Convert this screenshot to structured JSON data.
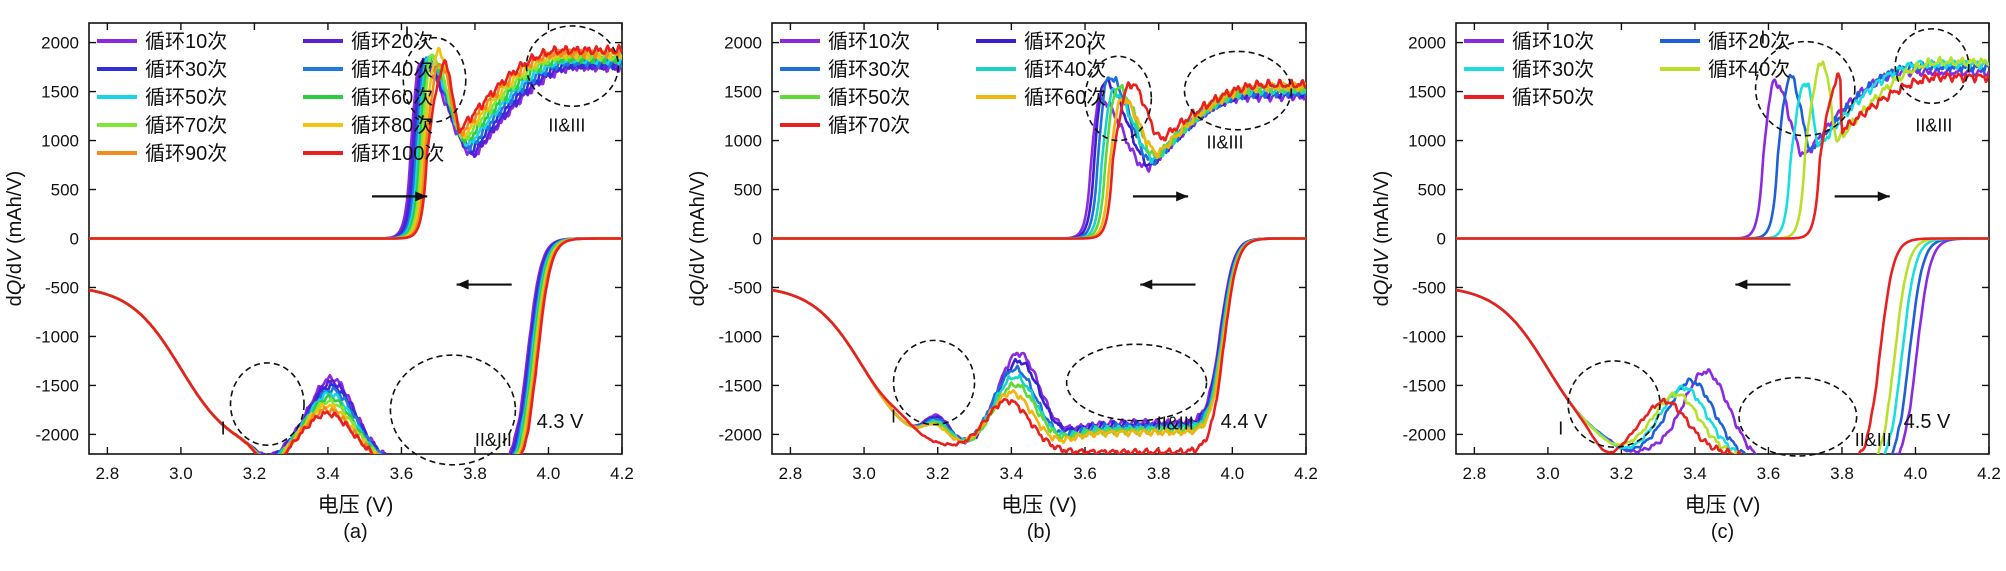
{
  "chart_data": [
    {
      "type": "line",
      "panel_label": "(a)",
      "voltage_label": "4.3 V",
      "xlabel": "电压 (V)",
      "ylabel_parts": [
        "d",
        "Q",
        "/d",
        "V",
        " (mAh/V)"
      ],
      "xlim": [
        2.75,
        4.2
      ],
      "ylim": [
        -2200,
        2200
      ],
      "xticks": [
        "2.8",
        "3.0",
        "3.2",
        "3.4",
        "3.6",
        "3.8",
        "4.0",
        "4.2"
      ],
      "yticks": [
        "-2000",
        "-1500",
        "-1000",
        "-500",
        "0",
        "500",
        "1000",
        "1500",
        "2000"
      ],
      "legend_columns": 2,
      "series": [
        {
          "name": "循环10次",
          "color": "#8a2be2",
          "charge_onset": 3.625,
          "charge_peak": [
            3.652,
            1800
          ],
          "charge_valley": [
            3.8,
            850
          ],
          "charge_end": 1750,
          "dis_peak": [
            3.235,
            -1800
          ],
          "dis_hump": [
            3.41,
            -950
          ],
          "dis_plateau": -1850,
          "dis_edge": 3.945
        },
        {
          "name": "循环20次",
          "color": "#5a1fd6",
          "charge_onset": 3.63,
          "charge_peak": [
            3.657,
            1810
          ],
          "charge_valley": [
            3.8,
            870
          ],
          "charge_end": 1760,
          "dis_peak": [
            3.236,
            -1810
          ],
          "dis_hump": [
            3.41,
            -990
          ],
          "dis_plateau": -1860,
          "dis_edge": 3.948
        },
        {
          "name": "循环30次",
          "color": "#2f2fd8",
          "charge_onset": 3.635,
          "charge_peak": [
            3.662,
            1820
          ],
          "charge_valley": [
            3.795,
            900
          ],
          "charge_end": 1780,
          "dis_peak": [
            3.237,
            -1820
          ],
          "dis_hump": [
            3.41,
            -1030
          ],
          "dis_plateau": -1870,
          "dis_edge": 3.951
        },
        {
          "name": "循环40次",
          "color": "#1f7ad8",
          "charge_onset": 3.64,
          "charge_peak": [
            3.667,
            1830
          ],
          "charge_valley": [
            3.79,
            930
          ],
          "charge_end": 1800,
          "dis_peak": [
            3.238,
            -1830
          ],
          "dis_hump": [
            3.41,
            -1070
          ],
          "dis_plateau": -1880,
          "dis_edge": 3.954
        },
        {
          "name": "循环50次",
          "color": "#19d3e8",
          "charge_onset": 3.645,
          "charge_peak": [
            3.672,
            1840
          ],
          "charge_valley": [
            3.785,
            960
          ],
          "charge_end": 1820,
          "dis_peak": [
            3.239,
            -1840
          ],
          "dis_hump": [
            3.405,
            -1110
          ],
          "dis_plateau": -1890,
          "dis_edge": 3.957
        },
        {
          "name": "循环60次",
          "color": "#2ecc40",
          "charge_onset": 3.65,
          "charge_peak": [
            3.677,
            1850
          ],
          "charge_valley": [
            3.78,
            990
          ],
          "charge_end": 1840,
          "dis_peak": [
            3.24,
            -1850
          ],
          "dis_hump": [
            3.405,
            -1150
          ],
          "dis_plateau": -1900,
          "dis_edge": 3.96
        },
        {
          "name": "循环70次",
          "color": "#7ee83a",
          "charge_onset": 3.655,
          "charge_peak": [
            3.682,
            1860
          ],
          "charge_valley": [
            3.775,
            1020
          ],
          "charge_end": 1860,
          "dis_peak": [
            3.241,
            -1860
          ],
          "dis_hump": [
            3.405,
            -1190
          ],
          "dis_plateau": -1910,
          "dis_edge": 3.963
        },
        {
          "name": "循环80次",
          "color": "#f2c40f",
          "charge_onset": 3.66,
          "charge_peak": [
            3.7,
            1900
          ],
          "charge_valley": [
            3.77,
            1050
          ],
          "charge_end": 1880,
          "dis_peak": [
            3.242,
            -1870
          ],
          "dis_hump": [
            3.4,
            -1230
          ],
          "dis_plateau": -1920,
          "dis_edge": 3.966
        },
        {
          "name": "循环90次",
          "color": "#f28c1f",
          "charge_onset": 3.665,
          "charge_peak": [
            3.705,
            1790
          ],
          "charge_valley": [
            3.765,
            1080
          ],
          "charge_end": 1900,
          "dis_peak": [
            3.243,
            -1880
          ],
          "dis_hump": [
            3.4,
            -1270
          ],
          "dis_plateau": -1930,
          "dis_edge": 3.969
        },
        {
          "name": "循环100次",
          "color": "#e8201f",
          "charge_onset": 3.67,
          "charge_peak": [
            3.72,
            1780
          ],
          "charge_valley": [
            3.76,
            1110
          ],
          "charge_end": 1920,
          "dis_peak": [
            3.244,
            -1890
          ],
          "dis_hump": [
            3.4,
            -1310
          ],
          "dis_plateau": -1940,
          "dis_edge": 3.972
        }
      ],
      "annotations": [
        {
          "text": "I",
          "x": 3.615,
          "y": 2030
        },
        {
          "text": "II&III",
          "x": 4.05,
          "y": 1090
        },
        {
          "text": "I",
          "x": 3.115,
          "y": -2000
        },
        {
          "text": "II&III",
          "x": 3.85,
          "y": -2120
        }
      ],
      "circles": [
        {
          "cx": 3.69,
          "cy": 1620,
          "rx": 0.085,
          "ry": 430
        },
        {
          "cx": 4.065,
          "cy": 1760,
          "rx": 0.125,
          "ry": 410
        },
        {
          "cx": 3.235,
          "cy": -1690,
          "rx": 0.1,
          "ry": 420
        },
        {
          "cx": 3.74,
          "cy": -1750,
          "rx": 0.17,
          "ry": 560
        }
      ],
      "arrows": [
        {
          "direction": "right",
          "x1": 3.52,
          "x2": 3.67,
          "y": 430
        },
        {
          "direction": "left",
          "x1": 3.9,
          "x2": 3.75,
          "y": -470
        }
      ]
    },
    {
      "type": "line",
      "panel_label": "(b)",
      "voltage_label": "4.4 V",
      "xlabel": "电压 (V)",
      "ylabel_parts": [
        "d",
        "Q",
        "/d",
        "V",
        " (mAh/V)"
      ],
      "xlim": [
        2.75,
        4.2
      ],
      "ylim": [
        -2200,
        2200
      ],
      "xticks": [
        "2.8",
        "3.0",
        "3.2",
        "3.4",
        "3.6",
        "3.8",
        "4.0",
        "4.2"
      ],
      "yticks": [
        "-2000",
        "-1500",
        "-1000",
        "-500",
        "0",
        "500",
        "1000",
        "1500",
        "2000"
      ],
      "legend_columns": 2,
      "series": [
        {
          "name": "循环10次",
          "color": "#8a2be2",
          "charge_onset": 3.615,
          "charge_peak": [
            3.64,
            1420
          ],
          "charge_valley": [
            3.77,
            720
          ],
          "charge_end": 1450,
          "dis_peak": [
            3.2,
            -1420
          ],
          "dis_hump": [
            3.42,
            -700
          ],
          "dis_plateau": -1400,
          "dis_edge": 3.965
        },
        {
          "name": "循环20次",
          "color": "#3a1fd0",
          "charge_onset": 3.625,
          "charge_peak": [
            3.652,
            1600
          ],
          "charge_valley": [
            3.78,
            750
          ],
          "charge_end": 1470,
          "dis_peak": [
            3.2,
            -1440
          ],
          "dis_hump": [
            3.42,
            -780
          ],
          "dis_plateau": -1420,
          "dis_edge": 3.967
        },
        {
          "name": "循环30次",
          "color": "#1f6fd8",
          "charge_onset": 3.635,
          "charge_peak": [
            3.664,
            1650
          ],
          "charge_valley": [
            3.785,
            780
          ],
          "charge_end": 1490,
          "dis_peak": [
            3.2,
            -1460
          ],
          "dis_hump": [
            3.41,
            -860
          ],
          "dis_plateau": -1440,
          "dis_edge": 3.969
        },
        {
          "name": "循环40次",
          "color": "#19d3c8",
          "charge_onset": 3.645,
          "charge_peak": [
            3.676,
            1500
          ],
          "charge_valley": [
            3.79,
            810
          ],
          "charge_end": 1510,
          "dis_peak": [
            3.2,
            -1480
          ],
          "dis_hump": [
            3.41,
            -940
          ],
          "dis_plateau": -1460,
          "dis_edge": 3.971
        },
        {
          "name": "循环50次",
          "color": "#5fd83a",
          "charge_onset": 3.655,
          "charge_peak": [
            3.688,
            1540
          ],
          "charge_valley": [
            3.795,
            840
          ],
          "charge_end": 1530,
          "dis_peak": [
            3.2,
            -1500
          ],
          "dis_hump": [
            3.41,
            -1020
          ],
          "dis_plateau": -1480,
          "dis_edge": 3.973
        },
        {
          "name": "循环60次",
          "color": "#f2b40f",
          "charge_onset": 3.665,
          "charge_peak": [
            3.7,
            1420
          ],
          "charge_valley": [
            3.8,
            870
          ],
          "charge_end": 1550,
          "dis_peak": [
            3.195,
            -1520
          ],
          "dis_hump": [
            3.4,
            -1100
          ],
          "dis_plateau": -1500,
          "dis_edge": 3.975
        },
        {
          "name": "循环70次",
          "color": "#e8201f",
          "charge_onset": 3.675,
          "charge_peak": [
            3.725,
            1580
          ],
          "charge_valley": [
            3.81,
            1020
          ],
          "charge_end": 1570,
          "dis_peak": [
            3.1,
            -1640
          ],
          "dis_hump": [
            3.39,
            -1180
          ],
          "dis_plateau": -1700,
          "dis_edge": 3.977
        }
      ],
      "annotations": [
        {
          "text": "I",
          "x": 3.612,
          "y": 1880
        },
        {
          "text": "II&III",
          "x": 3.98,
          "y": 920
        },
        {
          "text": "I",
          "x": 3.08,
          "y": -1880
        },
        {
          "text": "II&III",
          "x": 3.845,
          "y": -1950
        }
      ],
      "circles": [
        {
          "cx": 3.69,
          "cy": 1430,
          "rx": 0.09,
          "ry": 430
        },
        {
          "cx": 4.015,
          "cy": 1510,
          "rx": 0.145,
          "ry": 400
        },
        {
          "cx": 3.19,
          "cy": -1470,
          "rx": 0.11,
          "ry": 430
        },
        {
          "cx": 3.74,
          "cy": -1470,
          "rx": 0.19,
          "ry": 390
        }
      ],
      "arrows": [
        {
          "direction": "right",
          "x1": 3.73,
          "x2": 3.88,
          "y": 430
        },
        {
          "direction": "left",
          "x1": 3.9,
          "x2": 3.75,
          "y": -470
        }
      ]
    },
    {
      "type": "line",
      "panel_label": "(c)",
      "voltage_label": "4.5 V",
      "xlabel": "电压 (V)",
      "ylabel_parts": [
        "d",
        "Q",
        "/d",
        "V",
        " (mAh/V)"
      ],
      "xlim": [
        2.75,
        4.2
      ],
      "ylim": [
        -2200,
        2200
      ],
      "xticks": [
        "2.8",
        "3.0",
        "3.2",
        "3.4",
        "3.6",
        "3.8",
        "4.0",
        "4.2"
      ],
      "yticks": [
        "-2000",
        "-1500",
        "-1000",
        "-500",
        "0",
        "500",
        "1000",
        "1500",
        "2000"
      ],
      "legend_columns": 2,
      "series": [
        {
          "name": "循环10次",
          "color": "#8a2be2",
          "charge_onset": 3.585,
          "charge_peak": [
            3.617,
            1600
          ],
          "charge_valley": [
            3.7,
            850
          ],
          "charge_end": 1700,
          "dis_peak": [
            3.22,
            -1760
          ],
          "dis_hump": [
            3.43,
            -880
          ],
          "dis_plateau": -1850,
          "dis_edge": 4.005
        },
        {
          "name": "循环20次",
          "color": "#1f5fd8",
          "charge_onset": 3.625,
          "charge_peak": [
            3.66,
            1650
          ],
          "charge_valley": [
            3.72,
            900
          ],
          "charge_end": 1750,
          "dis_peak": [
            3.21,
            -1760
          ],
          "dis_hump": [
            3.39,
            -980
          ],
          "dis_plateau": -1870,
          "dis_edge": 3.985
        },
        {
          "name": "循环30次",
          "color": "#19dde0",
          "charge_onset": 3.66,
          "charge_peak": [
            3.702,
            1600
          ],
          "charge_valley": [
            3.74,
            950
          ],
          "charge_end": 1780,
          "dis_peak": [
            3.2,
            -1760
          ],
          "dis_hump": [
            3.37,
            -1050
          ],
          "dis_plateau": -1880,
          "dis_edge": 3.965
        },
        {
          "name": "循环40次",
          "color": "#b8e02a",
          "charge_onset": 3.7,
          "charge_peak": [
            3.748,
            1800
          ],
          "charge_valley": [
            3.79,
            1000
          ],
          "charge_end": 1800,
          "dis_peak": [
            3.18,
            -1750
          ],
          "dis_hump": [
            3.35,
            -1120
          ],
          "dis_plateau": -1900,
          "dis_edge": 3.945
        },
        {
          "name": "循环50次",
          "color": "#e8201f",
          "charge_onset": 3.74,
          "charge_peak": [
            3.795,
            1650
          ],
          "charge_valley": [
            3.8,
            1100
          ],
          "charge_end": 1650,
          "dis_peak": [
            3.16,
            -1870
          ],
          "dis_hump": [
            3.32,
            -1200
          ],
          "dis_plateau": -1830,
          "dis_edge": 3.905
        }
      ],
      "annotations": [
        {
          "text": "I",
          "x": 3.585,
          "y": 1990
        },
        {
          "text": "II&III",
          "x": 4.05,
          "y": 1090
        },
        {
          "text": "I",
          "x": 3.035,
          "y": -2000
        },
        {
          "text": "II&III",
          "x": 3.885,
          "y": -2120
        }
      ],
      "circles": [
        {
          "cx": 3.7,
          "cy": 1530,
          "rx": 0.135,
          "ry": 480
        },
        {
          "cx": 4.045,
          "cy": 1760,
          "rx": 0.1,
          "ry": 380
        },
        {
          "cx": 3.18,
          "cy": -1690,
          "rx": 0.125,
          "ry": 440
        },
        {
          "cx": 3.68,
          "cy": -1820,
          "rx": 0.16,
          "ry": 400
        }
      ],
      "arrows": [
        {
          "direction": "right",
          "x1": 3.78,
          "x2": 3.93,
          "y": 430
        },
        {
          "direction": "left",
          "x1": 3.66,
          "x2": 3.51,
          "y": -470
        }
      ]
    }
  ]
}
